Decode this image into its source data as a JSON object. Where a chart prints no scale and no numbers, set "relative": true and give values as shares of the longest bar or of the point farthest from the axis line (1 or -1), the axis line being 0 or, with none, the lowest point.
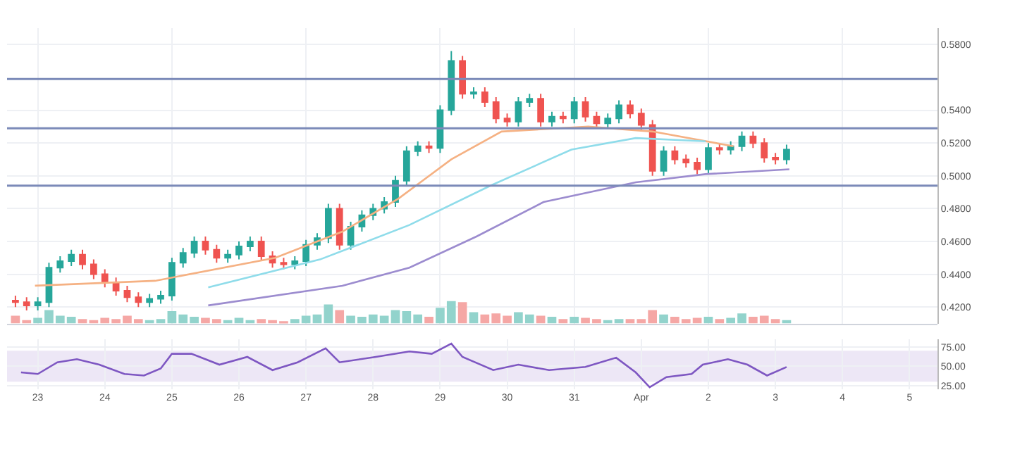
{
  "chart_data": [
    {
      "type": "candlestick",
      "xlim": [
        "--03-22T13:00",
        "--04-05T10:00"
      ],
      "ylim": [
        0.41,
        0.59
      ],
      "yticks": [
        {
          "value": 0.42,
          "label": "0.4200"
        },
        {
          "value": 0.44,
          "label": "0.4400"
        },
        {
          "value": 0.46,
          "label": "0.4600"
        },
        {
          "value": 0.48,
          "label": "0.4800"
        },
        {
          "value": 0.5,
          "label": "0.5000"
        },
        {
          "value": 0.52,
          "label": "0.5200"
        },
        {
          "value": 0.54,
          "label": "0.5400"
        },
        {
          "value": 0.58,
          "label": "0.5800"
        }
      ],
      "tick_labels": "y",
      "grid": true,
      "x": [
        "--03-22T16:00",
        "--03-22T20:00",
        "--03-23T00:00",
        "--03-23T04:00",
        "--03-23T08:00",
        "--03-23T12:00",
        "--03-23T16:00",
        "--03-23T20:00",
        "--03-24T00:00",
        "--03-24T04:00",
        "--03-24T08:00",
        "--03-24T12:00",
        "--03-24T16:00",
        "--03-24T20:00",
        "--03-25T00:00",
        "--03-25T04:00",
        "--03-25T08:00",
        "--03-25T12:00",
        "--03-25T16:00",
        "--03-25T20:00",
        "--03-26T00:00",
        "--03-26T04:00",
        "--03-26T08:00",
        "--03-26T12:00",
        "--03-26T16:00",
        "--03-26T20:00",
        "--03-27T00:00",
        "--03-27T04:00",
        "--03-27T08:00",
        "--03-27T12:00",
        "--03-27T16:00",
        "--03-27T20:00",
        "--03-28T00:00",
        "--03-28T04:00",
        "--03-28T08:00",
        "--03-28T12:00",
        "--03-28T16:00",
        "--03-28T20:00",
        "--03-29T00:00",
        "--03-29T04:00",
        "--03-29T08:00",
        "--03-29T12:00",
        "--03-29T16:00",
        "--03-29T20:00",
        "--03-30T00:00",
        "--03-30T04:00",
        "--03-30T08:00",
        "--03-30T12:00",
        "--03-30T16:00",
        "--03-30T20:00",
        "--03-31T00:00",
        "--03-31T04:00",
        "--03-31T08:00",
        "--03-31T12:00",
        "--03-31T16:00",
        "--03-31T20:00",
        "--04-01T00:00",
        "--04-01T04:00",
        "--04-01T08:00",
        "--04-01T12:00",
        "--04-01T16:00",
        "--04-01T20:00",
        "--04-02T00:00",
        "--04-02T04:00",
        "--04-02T08:00",
        "--04-02T12:00",
        "--04-02T16:00",
        "--04-02T20:00",
        "--04-03T00:00",
        "--04-03T04:00"
      ],
      "ohlc": [
        [
          0.424,
          0.427,
          0.42,
          0.423
        ],
        [
          0.423,
          0.426,
          0.418,
          0.421
        ],
        [
          0.421,
          0.426,
          0.418,
          0.423
        ],
        [
          0.423,
          0.447,
          0.42,
          0.444
        ],
        [
          0.444,
          0.451,
          0.441,
          0.448
        ],
        [
          0.448,
          0.455,
          0.445,
          0.452
        ],
        [
          0.452,
          0.455,
          0.443,
          0.446
        ],
        [
          0.446,
          0.449,
          0.437,
          0.44
        ],
        [
          0.44,
          0.443,
          0.432,
          0.435
        ],
        [
          0.435,
          0.438,
          0.427,
          0.43
        ],
        [
          0.43,
          0.433,
          0.423,
          0.426
        ],
        [
          0.426,
          0.429,
          0.42,
          0.423
        ],
        [
          0.423,
          0.428,
          0.42,
          0.425
        ],
        [
          0.425,
          0.43,
          0.422,
          0.427
        ],
        [
          0.427,
          0.45,
          0.424,
          0.447
        ],
        [
          0.447,
          0.456,
          0.444,
          0.453
        ],
        [
          0.453,
          0.463,
          0.45,
          0.46
        ],
        [
          0.46,
          0.463,
          0.452,
          0.455
        ],
        [
          0.455,
          0.458,
          0.447,
          0.45
        ],
        [
          0.45,
          0.455,
          0.447,
          0.452
        ],
        [
          0.452,
          0.46,
          0.449,
          0.457
        ],
        [
          0.457,
          0.463,
          0.454,
          0.46
        ],
        [
          0.46,
          0.463,
          0.448,
          0.451
        ],
        [
          0.451,
          0.454,
          0.444,
          0.447
        ],
        [
          0.447,
          0.45,
          0.443,
          0.446
        ],
        [
          0.446,
          0.451,
          0.443,
          0.448
        ],
        [
          0.448,
          0.461,
          0.445,
          0.458
        ],
        [
          0.458,
          0.465,
          0.455,
          0.462
        ],
        [
          0.462,
          0.483,
          0.459,
          0.48
        ],
        [
          0.48,
          0.483,
          0.455,
          0.458
        ],
        [
          0.458,
          0.472,
          0.455,
          0.469
        ],
        [
          0.469,
          0.479,
          0.466,
          0.476
        ],
        [
          0.476,
          0.483,
          0.473,
          0.48
        ],
        [
          0.48,
          0.487,
          0.477,
          0.484
        ],
        [
          0.484,
          0.5,
          0.481,
          0.497
        ],
        [
          0.497,
          0.518,
          0.494,
          0.515
        ],
        [
          0.515,
          0.521,
          0.512,
          0.518
        ],
        [
          0.518,
          0.521,
          0.514,
          0.517
        ],
        [
          0.517,
          0.543,
          0.514,
          0.54
        ],
        [
          0.54,
          0.576,
          0.537,
          0.57
        ],
        [
          0.57,
          0.573,
          0.547,
          0.55
        ],
        [
          0.55,
          0.554,
          0.547,
          0.551
        ],
        [
          0.551,
          0.554,
          0.542,
          0.545
        ],
        [
          0.545,
          0.548,
          0.532,
          0.535
        ],
        [
          0.535,
          0.538,
          0.53,
          0.533
        ],
        [
          0.533,
          0.548,
          0.53,
          0.545
        ],
        [
          0.545,
          0.55,
          0.542,
          0.547
        ],
        [
          0.547,
          0.55,
          0.53,
          0.533
        ],
        [
          0.533,
          0.539,
          0.53,
          0.536
        ],
        [
          0.536,
          0.539,
          0.532,
          0.535
        ],
        [
          0.535,
          0.548,
          0.532,
          0.545
        ],
        [
          0.545,
          0.548,
          0.533,
          0.536
        ],
        [
          0.536,
          0.539,
          0.529,
          0.532
        ],
        [
          0.532,
          0.538,
          0.529,
          0.535
        ],
        [
          0.535,
          0.546,
          0.532,
          0.543
        ],
        [
          0.543,
          0.546,
          0.535,
          0.538
        ],
        [
          0.538,
          0.541,
          0.528,
          0.531
        ],
        [
          0.531,
          0.534,
          0.5,
          0.503
        ],
        [
          0.503,
          0.518,
          0.5,
          0.515
        ],
        [
          0.515,
          0.518,
          0.507,
          0.51
        ],
        [
          0.51,
          0.513,
          0.505,
          0.508
        ],
        [
          0.508,
          0.511,
          0.501,
          0.504
        ],
        [
          0.504,
          0.52,
          0.501,
          0.517
        ],
        [
          0.517,
          0.52,
          0.513,
          0.516
        ],
        [
          0.516,
          0.521,
          0.513,
          0.518
        ],
        [
          0.518,
          0.527,
          0.515,
          0.524
        ],
        [
          0.524,
          0.527,
          0.517,
          0.52
        ],
        [
          0.52,
          0.523,
          0.508,
          0.511
        ],
        [
          0.511,
          0.514,
          0.507,
          0.51
        ],
        [
          0.51,
          0.519,
          0.507,
          0.516
        ]
      ],
      "colors": [
        "#ef5350",
        "#ef5350",
        "#26a69a",
        "#26a69a",
        "#26a69a",
        "#26a69a",
        "#ef5350",
        "#ef5350",
        "#ef5350",
        "#ef5350",
        "#ef5350",
        "#ef5350",
        "#26a69a",
        "#26a69a",
        "#26a69a",
        "#26a69a",
        "#26a69a",
        "#ef5350",
        "#ef5350",
        "#26a69a",
        "#26a69a",
        "#26a69a",
        "#ef5350",
        "#ef5350",
        "#ef5350",
        "#26a69a",
        "#26a69a",
        "#26a69a",
        "#26a69a",
        "#ef5350",
        "#26a69a",
        "#26a69a",
        "#26a69a",
        "#26a69a",
        "#26a69a",
        "#26a69a",
        "#26a69a",
        "#ef5350",
        "#26a69a",
        "#26a69a",
        "#ef5350",
        "#26a69a",
        "#ef5350",
        "#ef5350",
        "#ef5350",
        "#26a69a",
        "#26a69a",
        "#ef5350",
        "#26a69a",
        "#ef5350",
        "#26a69a",
        "#ef5350",
        "#ef5350",
        "#26a69a",
        "#26a69a",
        "#ef5350",
        "#ef5350",
        "#ef5350",
        "#26a69a",
        "#ef5350",
        "#ef5350",
        "#ef5350",
        "#26a69a",
        "#ef5350",
        "#26a69a",
        "#26a69a",
        "#ef5350",
        "#ef5350",
        "#ef5350",
        "#26a69a"
      ],
      "series": [
        {
          "type": "line",
          "color": "#f5b183",
          "x": [
            "--03-22T23:00",
            "--03-24T18:00",
            "--03-26T13:00",
            "--03-27T13:00",
            "--03-28T09:00",
            "--03-29T04:00",
            "--03-29T22:00",
            "--03-31T05:00",
            "--04-01T04:00",
            "--04-02T09:00"
          ],
          "values": [
            0.433,
            0.436,
            0.45,
            0.466,
            0.486,
            0.51,
            0.527,
            0.53,
            0.527,
            0.518
          ]
        },
        {
          "type": "line",
          "color": "#8fdcea",
          "x": [
            "--03-25T13:00",
            "--03-27T05:00",
            "--03-28T13:00",
            "--03-29T18:00",
            "--03-30T23:00",
            "--03-31T22:00",
            "--04-01T23:00"
          ],
          "values": [
            0.432,
            0.449,
            0.47,
            0.494,
            0.516,
            0.523,
            0.521
          ]
        },
        {
          "type": "line",
          "color": "#9c8ccf",
          "x": [
            "--03-25T13:00",
            "--03-27T13:00",
            "--03-28T13:00",
            "--03-29T13:00",
            "--03-30T13:00",
            "--03-31T22:00",
            "--04-01T23:00",
            "--04-03T05:00"
          ],
          "values": [
            0.421,
            0.433,
            0.444,
            0.463,
            0.484,
            0.496,
            0.501,
            0.504
          ]
        }
      ],
      "ref_lines": [
        {
          "axis": "y",
          "value": 0.559,
          "color": "#7b8ab8"
        },
        {
          "axis": "y",
          "value": 0.529,
          "color": "#7b8ab8"
        },
        {
          "axis": "y",
          "value": 0.494,
          "color": "#7b8ab8"
        }
      ]
    },
    {
      "type": "bar",
      "relative": true,
      "tick_labels": false,
      "xlim": [
        "--03-22T13:00",
        "--04-05T10:00"
      ],
      "x": [
        "--03-22T16:00",
        "--03-22T20:00",
        "--03-23T00:00",
        "--03-23T04:00",
        "--03-23T08:00",
        "--03-23T12:00",
        "--03-23T16:00",
        "--03-23T20:00",
        "--03-24T00:00",
        "--03-24T04:00",
        "--03-24T08:00",
        "--03-24T12:00",
        "--03-24T16:00",
        "--03-24T20:00",
        "--03-25T00:00",
        "--03-25T04:00",
        "--03-25T08:00",
        "--03-25T12:00",
        "--03-25T16:00",
        "--03-25T20:00",
        "--03-26T00:00",
        "--03-26T04:00",
        "--03-26T08:00",
        "--03-26T12:00",
        "--03-26T16:00",
        "--03-26T20:00",
        "--03-27T00:00",
        "--03-27T04:00",
        "--03-27T08:00",
        "--03-27T12:00",
        "--03-27T16:00",
        "--03-27T20:00",
        "--03-28T00:00",
        "--03-28T04:00",
        "--03-28T08:00",
        "--03-28T12:00",
        "--03-28T16:00",
        "--03-28T20:00",
        "--03-29T00:00",
        "--03-29T04:00",
        "--03-29T08:00",
        "--03-29T12:00",
        "--03-29T16:00",
        "--03-29T20:00",
        "--03-30T00:00",
        "--03-30T04:00",
        "--03-30T08:00",
        "--03-30T12:00",
        "--03-30T16:00",
        "--03-30T20:00",
        "--03-31T00:00",
        "--03-31T04:00",
        "--03-31T08:00",
        "--03-31T12:00",
        "--03-31T16:00",
        "--03-31T20:00",
        "--04-01T00:00",
        "--04-01T04:00",
        "--04-01T08:00",
        "--04-01T12:00",
        "--04-01T16:00",
        "--04-01T20:00",
        "--04-02T00:00",
        "--04-02T04:00",
        "--04-02T08:00",
        "--04-02T12:00",
        "--04-02T16:00",
        "--04-02T20:00",
        "--04-03T00:00",
        "--04-03T04:00"
      ],
      "values": [
        0.35,
        0.15,
        0.25,
        0.6,
        0.35,
        0.3,
        0.2,
        0.15,
        0.25,
        0.2,
        0.35,
        0.2,
        0.15,
        0.2,
        0.55,
        0.4,
        0.3,
        0.25,
        0.2,
        0.15,
        0.25,
        0.15,
        0.2,
        0.15,
        0.1,
        0.2,
        0.35,
        0.4,
        0.85,
        0.6,
        0.35,
        0.3,
        0.4,
        0.35,
        0.6,
        0.55,
        0.4,
        0.3,
        0.7,
        1,
        0.95,
        0.5,
        0.4,
        0.45,
        0.35,
        0.5,
        0.4,
        0.35,
        0.3,
        0.2,
        0.3,
        0.25,
        0.2,
        0.15,
        0.2,
        0.2,
        0.2,
        0.6,
        0.4,
        0.3,
        0.2,
        0.25,
        0.3,
        0.2,
        0.25,
        0.45,
        0.3,
        0.35,
        0.2,
        0.15
      ],
      "colors": [
        "#f5a7a5",
        "#f5a7a5",
        "#92d3cc",
        "#92d3cc",
        "#92d3cc",
        "#92d3cc",
        "#f5a7a5",
        "#f5a7a5",
        "#f5a7a5",
        "#f5a7a5",
        "#f5a7a5",
        "#f5a7a5",
        "#92d3cc",
        "#92d3cc",
        "#92d3cc",
        "#92d3cc",
        "#92d3cc",
        "#f5a7a5",
        "#f5a7a5",
        "#92d3cc",
        "#92d3cc",
        "#92d3cc",
        "#f5a7a5",
        "#f5a7a5",
        "#f5a7a5",
        "#92d3cc",
        "#92d3cc",
        "#92d3cc",
        "#92d3cc",
        "#f5a7a5",
        "#92d3cc",
        "#92d3cc",
        "#92d3cc",
        "#92d3cc",
        "#92d3cc",
        "#92d3cc",
        "#92d3cc",
        "#f5a7a5",
        "#92d3cc",
        "#92d3cc",
        "#f5a7a5",
        "#92d3cc",
        "#f5a7a5",
        "#f5a7a5",
        "#f5a7a5",
        "#92d3cc",
        "#92d3cc",
        "#f5a7a5",
        "#92d3cc",
        "#f5a7a5",
        "#92d3cc",
        "#f5a7a5",
        "#f5a7a5",
        "#92d3cc",
        "#92d3cc",
        "#f5a7a5",
        "#f5a7a5",
        "#f5a7a5",
        "#92d3cc",
        "#f5a7a5",
        "#f5a7a5",
        "#f5a7a5",
        "#92d3cc",
        "#f5a7a5",
        "#92d3cc",
        "#92d3cc",
        "#f5a7a5",
        "#f5a7a5",
        "#f5a7a5",
        "#92d3cc"
      ]
    },
    {
      "type": "line",
      "color": "#7e57c2",
      "grid": true,
      "xlim": [
        "--03-22T13:00",
        "--04-05T10:00"
      ],
      "ylim": [
        20,
        85
      ],
      "yticks": [
        {
          "value": 25,
          "label": "25.00"
        },
        {
          "value": 50,
          "label": "50.00"
        },
        {
          "value": 75,
          "label": "75.00"
        }
      ],
      "xticks": [
        {
          "value": "--03-23",
          "label": "23"
        },
        {
          "value": "--03-24",
          "label": "24"
        },
        {
          "value": "--03-25",
          "label": "25"
        },
        {
          "value": "--03-26",
          "label": "26"
        },
        {
          "value": "--03-27",
          "label": "27"
        },
        {
          "value": "--03-28",
          "label": "28"
        },
        {
          "value": "--03-29",
          "label": "29"
        },
        {
          "value": "--03-30",
          "label": "30"
        },
        {
          "value": "--03-31",
          "label": "31"
        },
        {
          "value": "--04-01",
          "label": "Apr"
        },
        {
          "value": "--04-02",
          "label": "2"
        },
        {
          "value": "--04-03",
          "label": "3"
        },
        {
          "value": "--04-04",
          "label": "4"
        },
        {
          "value": "--04-05",
          "label": "5"
        }
      ],
      "bands": [
        {
          "axis": "y",
          "from": 30,
          "to": 70,
          "color": "#ede7f6"
        }
      ],
      "x": [
        "--03-22T18:00",
        "--03-23T00:00",
        "--03-23T07:00",
        "--03-23T14:00",
        "--03-23T22:00",
        "--03-24T07:00",
        "--03-24T14:00",
        "--03-24T20:00",
        "--03-25T00:00",
        "--03-25T07:00",
        "--03-25T12:00",
        "--03-25T17:00",
        "--03-26T03:00",
        "--03-26T12:00",
        "--03-26T21:00",
        "--03-27T07:00",
        "--03-27T12:00",
        "--03-28T01:00",
        "--03-28T13:00",
        "--03-28T21:00",
        "--03-29T04:00",
        "--03-29T08:00",
        "--03-29T19:00",
        "--03-30T04:00",
        "--03-30T15:00",
        "--03-31T04:00",
        "--03-31T15:00",
        "--03-31T22:00",
        "--04-01T03:00",
        "--04-01T09:00",
        "--04-01T18:00",
        "--04-01T22:00",
        "--04-02T07:00",
        "--04-02T14:00",
        "--04-02T21:00",
        "--04-03T04:00"
      ],
      "values": [
        42,
        40,
        55,
        59,
        52,
        40,
        38,
        47,
        66,
        66,
        59,
        52,
        62,
        45,
        55,
        73,
        55,
        62,
        69,
        66,
        79,
        62,
        45,
        52,
        45,
        49,
        61,
        42,
        23,
        36,
        40,
        52,
        59,
        52,
        38,
        49
      ]
    }
  ]
}
